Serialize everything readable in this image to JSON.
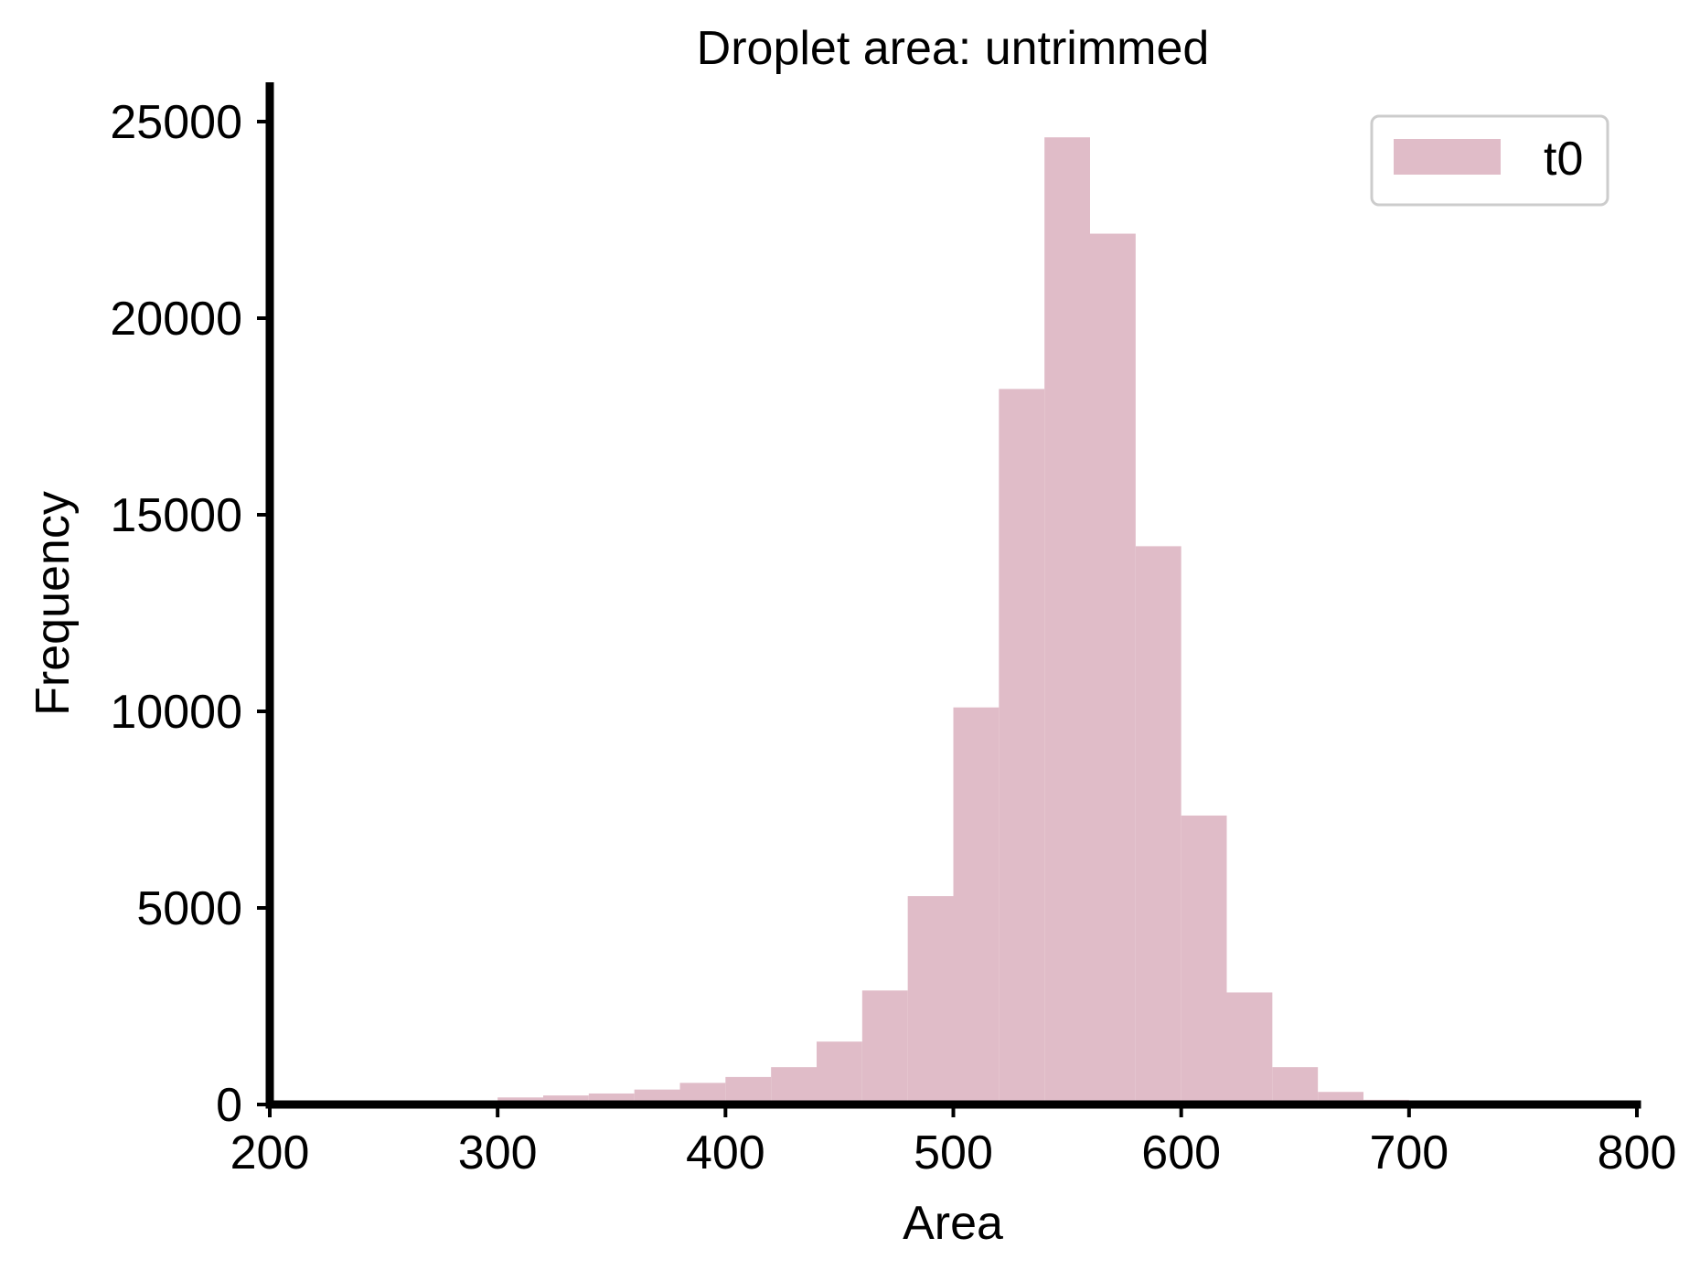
{
  "chart_data": {
    "type": "bar",
    "title": "Droplet area: untrimmed",
    "xlabel": "Area",
    "ylabel": "Frequency",
    "xlim": [
      200,
      800
    ],
    "ylim": [
      0,
      26000
    ],
    "xticks": [
      200,
      300,
      400,
      500,
      600,
      700,
      800
    ],
    "yticks": [
      0,
      5000,
      10000,
      15000,
      20000,
      25000
    ],
    "grid": false,
    "legend_position": "top-right",
    "bar_color": "#e0bcc8",
    "bin_width": 20,
    "series": [
      {
        "name": "t0",
        "bins": [
          {
            "x0": 260,
            "x1": 280,
            "value": 20
          },
          {
            "x0": 280,
            "x1": 300,
            "value": 80
          },
          {
            "x0": 300,
            "x1": 320,
            "value": 180
          },
          {
            "x0": 320,
            "x1": 340,
            "value": 230
          },
          {
            "x0": 340,
            "x1": 360,
            "value": 280
          },
          {
            "x0": 360,
            "x1": 380,
            "value": 380
          },
          {
            "x0": 380,
            "x1": 400,
            "value": 550
          },
          {
            "x0": 400,
            "x1": 420,
            "value": 700
          },
          {
            "x0": 420,
            "x1": 440,
            "value": 950
          },
          {
            "x0": 440,
            "x1": 460,
            "value": 1600
          },
          {
            "x0": 460,
            "x1": 480,
            "value": 2900
          },
          {
            "x0": 480,
            "x1": 500,
            "value": 5300
          },
          {
            "x0": 500,
            "x1": 520,
            "value": 10100
          },
          {
            "x0": 520,
            "x1": 540,
            "value": 18200
          },
          {
            "x0": 540,
            "x1": 560,
            "value": 24600
          },
          {
            "x0": 560,
            "x1": 580,
            "value": 22150
          },
          {
            "x0": 580,
            "x1": 600,
            "value": 14200
          },
          {
            "x0": 600,
            "x1": 620,
            "value": 7350
          },
          {
            "x0": 620,
            "x1": 640,
            "value": 2850
          },
          {
            "x0": 640,
            "x1": 660,
            "value": 950
          },
          {
            "x0": 660,
            "x1": 680,
            "value": 320
          },
          {
            "x0": 680,
            "x1": 700,
            "value": 120
          },
          {
            "x0": 700,
            "x1": 720,
            "value": 30
          }
        ]
      }
    ]
  }
}
